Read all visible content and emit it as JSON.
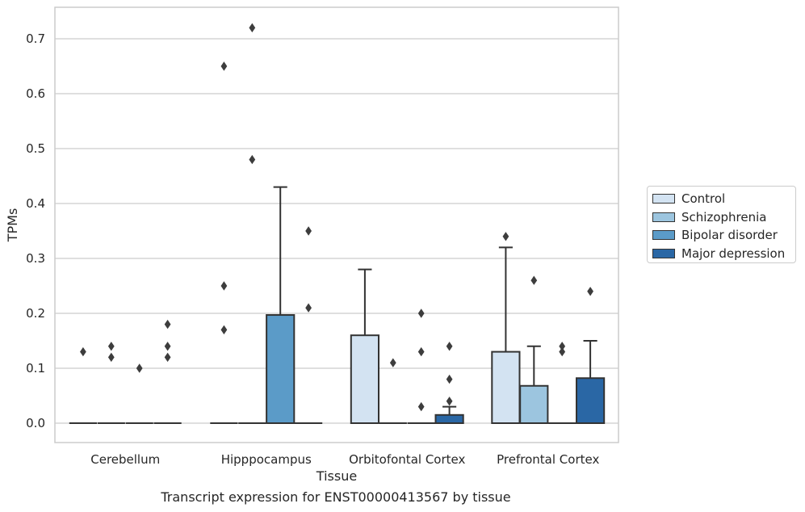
{
  "chart_data": {
    "type": "box",
    "xlabel": "Tissue",
    "ylabel": "TPMs",
    "caption": "Transcript expression for ENST00000413567 by tissue",
    "categories": [
      "Cerebellum",
      "Hipppocampus",
      "Orbitofontal Cortex",
      "Prefrontal Cortex"
    ],
    "ylim": [
      -0.035,
      0.76
    ],
    "yticks": [
      0.0,
      0.1,
      0.2,
      0.3,
      0.4,
      0.5,
      0.6,
      0.7
    ],
    "ytick_labels": [
      "0.0",
      "0.1",
      "0.2",
      "0.3",
      "0.4",
      "0.5",
      "0.6",
      "0.7"
    ],
    "grid": "horizontal",
    "legend_position": "right",
    "series": [
      {
        "name": "Control",
        "color": "#d3e3f2",
        "boxes": [
          {
            "q1": 0,
            "median": 0,
            "q3": 0,
            "whisker_low": 0,
            "whisker_high": 0,
            "outliers": [
              0.13
            ]
          },
          {
            "q1": 0,
            "median": 0,
            "q3": 0,
            "whisker_low": 0,
            "whisker_high": 0,
            "outliers": [
              0.17,
              0.25,
              0.65
            ]
          },
          {
            "q1": 0,
            "median": 0,
            "q3": 0.16,
            "whisker_low": 0,
            "whisker_high": 0.28,
            "outliers": []
          },
          {
            "q1": 0,
            "median": 0,
            "q3": 0.13,
            "whisker_low": 0,
            "whisker_high": 0.32,
            "outliers": [
              0.34
            ]
          }
        ]
      },
      {
        "name": "Schizophrenia",
        "color": "#9cc5df",
        "boxes": [
          {
            "q1": 0,
            "median": 0,
            "q3": 0,
            "whisker_low": 0,
            "whisker_high": 0,
            "outliers": [
              0.12,
              0.14
            ]
          },
          {
            "q1": 0,
            "median": 0,
            "q3": 0,
            "whisker_low": 0,
            "whisker_high": 0,
            "outliers": [
              0.72,
              0.48
            ]
          },
          {
            "q1": 0,
            "median": 0,
            "q3": 0,
            "whisker_low": 0,
            "whisker_high": 0,
            "outliers": [
              0.11
            ]
          },
          {
            "q1": 0,
            "median": 0,
            "q3": 0.068,
            "whisker_low": 0,
            "whisker_high": 0.14,
            "outliers": [
              0.26
            ]
          }
        ]
      },
      {
        "name": "Bipolar disorder",
        "color": "#5b9bc8",
        "boxes": [
          {
            "q1": 0,
            "median": 0,
            "q3": 0,
            "whisker_low": 0,
            "whisker_high": 0,
            "outliers": [
              0.1
            ]
          },
          {
            "q1": 0,
            "median": 0,
            "q3": 0.197,
            "whisker_low": 0,
            "whisker_high": 0.43,
            "outliers": []
          },
          {
            "q1": 0,
            "median": 0,
            "q3": 0,
            "whisker_low": 0,
            "whisker_high": 0,
            "outliers": [
              0.03,
              0.13,
              0.2
            ]
          },
          {
            "q1": 0,
            "median": 0,
            "q3": 0,
            "whisker_low": 0,
            "whisker_high": 0,
            "outliers": [
              0.13,
              0.14
            ]
          }
        ]
      },
      {
        "name": "Major depression",
        "color": "#2a67a5",
        "boxes": [
          {
            "q1": 0,
            "median": 0,
            "q3": 0,
            "whisker_low": 0,
            "whisker_high": 0,
            "outliers": [
              0.12,
              0.14,
              0.18
            ]
          },
          {
            "q1": 0,
            "median": 0,
            "q3": 0,
            "whisker_low": 0,
            "whisker_high": 0,
            "outliers": [
              0.21,
              0.35
            ]
          },
          {
            "q1": 0,
            "median": 0,
            "q3": 0.015,
            "whisker_low": 0,
            "whisker_high": 0.03,
            "outliers": [
              0.04,
              0.08,
              0.14
            ]
          },
          {
            "q1": 0,
            "median": 0,
            "q3": 0.082,
            "whisker_low": 0,
            "whisker_high": 0.15,
            "outliers": [
              0.24
            ]
          }
        ]
      }
    ]
  }
}
